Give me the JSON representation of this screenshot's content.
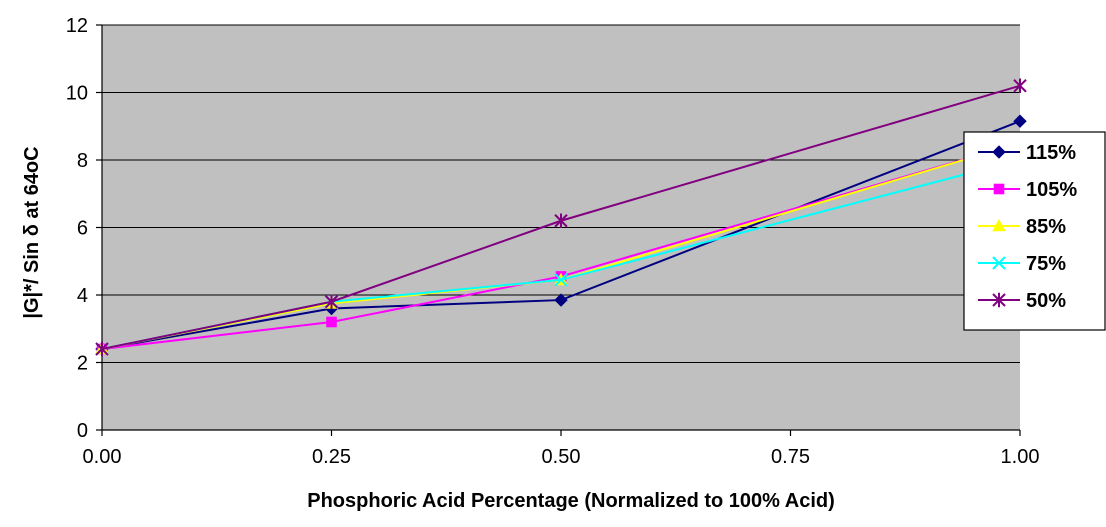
{
  "chart_data": {
    "type": "line",
    "title": "",
    "xlabel": "Phosphoric Acid Percentage (Normalized to 100% Acid)",
    "ylabel": "|G|*/ Sin δ at 64oC",
    "x": [
      0.0,
      0.25,
      0.5,
      1.0
    ],
    "x_ticks": [
      "0.00",
      "0.25",
      "0.50",
      "0.75",
      "1.00"
    ],
    "x_tick_values": [
      0.0,
      0.25,
      0.5,
      0.75,
      1.0
    ],
    "xlim": [
      0,
      1
    ],
    "y_ticks": [
      "0",
      "2",
      "4",
      "6",
      "8",
      "10",
      "12"
    ],
    "y_tick_values": [
      0,
      2,
      4,
      6,
      8,
      10,
      12
    ],
    "ylim": [
      0,
      12
    ],
    "grid": true,
    "plot_background": "#c0c0c0",
    "legend_position": "right",
    "series": [
      {
        "name": "115%",
        "color": "#000080",
        "marker": "diamond",
        "values": [
          2.4,
          3.6,
          3.85,
          9.15
        ]
      },
      {
        "name": "105%",
        "color": "#ff00ff",
        "marker": "square",
        "values": [
          2.4,
          3.2,
          4.55,
          8.5
        ]
      },
      {
        "name": "85%",
        "color": "#ffff00",
        "marker": "triangle",
        "values": [
          2.4,
          3.75,
          4.45,
          8.5
        ]
      },
      {
        "name": "75%",
        "color": "#00ffff",
        "marker": "x",
        "values": [
          2.4,
          3.8,
          4.45,
          8.0
        ]
      },
      {
        "name": "50%",
        "color": "#800080",
        "marker": "star",
        "values": [
          2.4,
          3.8,
          6.2,
          10.2
        ]
      }
    ]
  }
}
